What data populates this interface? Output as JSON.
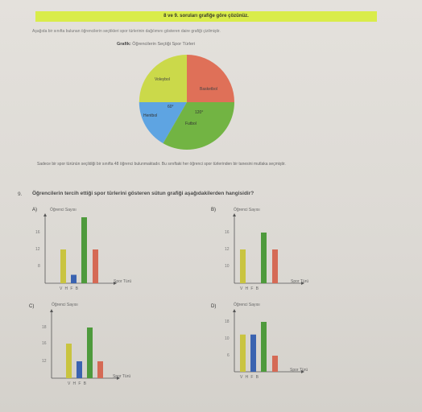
{
  "header": {
    "banner": "8 ve 9. soruları grafiğe göre çözünüz.",
    "intro": "Aşağıda bir sınıfta bulunan öğrencilerin seçtikleri spor türlerinin dağılımını gösteren daire grafiği çizilmiştir.",
    "grafik_label": "Grafik:",
    "grafik_title": "Öğrencilerin Seçtiği Spor Türleri"
  },
  "pie": {
    "labels": [
      "Voleybol",
      "Basketbol",
      "Hentbol",
      "Futbol"
    ],
    "angle_labels": [
      "60°",
      "120°"
    ],
    "colors": [
      "#cbd94a",
      "#df7058",
      "#5ea4e2",
      "#72b443"
    ]
  },
  "note": "Sadece bir spor türünün seçildiği bir sınıfta 48 öğrenci bulunmaktadır. Bu sınıftaki her öğrenci spor türlerinden bir tanesini mutlaka seçmiştir.",
  "question": {
    "number": "9.",
    "text": "Öğrencilerin tercih ettiği spor türlerini gösteren sütun grafiği aşağıdakilerden hangisidir?"
  },
  "chart_data": [
    {
      "type": "bar",
      "option": "A)",
      "ylabel": "Öğrenci Sayısı",
      "xlabel": "Spor Türü",
      "categories": [
        "V",
        "H",
        "F",
        "B"
      ],
      "yticks": [
        8,
        12,
        16
      ],
      "values": [
        12,
        6,
        20,
        12
      ],
      "colors": [
        "#c9c440",
        "#3a63b0",
        "#4e9a3c",
        "#d56a55"
      ]
    },
    {
      "type": "bar",
      "option": "B)",
      "ylabel": "Öğrenci Sayısı",
      "xlabel": "Spor Türü",
      "categories": [
        "V",
        "H",
        "F",
        "B"
      ],
      "yticks": [
        10,
        12,
        16
      ],
      "values": [
        12,
        8,
        16,
        12
      ],
      "colors": [
        "#c9c440",
        "#3a63b0",
        "#4e9a3c",
        "#d56a55"
      ]
    },
    {
      "type": "bar",
      "option": "C)",
      "ylabel": "Öğrenci Sayısı",
      "xlabel": "Spor Türü",
      "categories": [
        "V",
        "H",
        "F",
        "B"
      ],
      "yticks": [
        12,
        16,
        18
      ],
      "values": [
        16,
        12,
        18,
        12
      ],
      "colors": [
        "#c9c440",
        "#3a63b0",
        "#4e9a3c",
        "#d56a55"
      ]
    },
    {
      "type": "bar",
      "option": "D)",
      "ylabel": "Öğrenci Sayısı",
      "xlabel": "Spor Türü",
      "categories": [
        "V",
        "H",
        "F",
        "B"
      ],
      "yticks": [
        6,
        10,
        18
      ],
      "values": [
        12,
        12,
        18,
        6
      ],
      "colors": [
        "#c9c440",
        "#3a63b0",
        "#4e9a3c",
        "#d56a55"
      ]
    }
  ]
}
